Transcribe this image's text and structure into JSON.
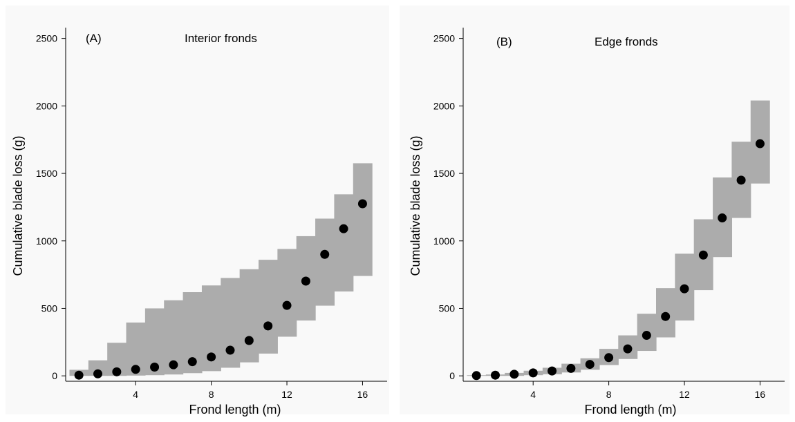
{
  "chart_data": [
    {
      "type": "scatter",
      "panel_label": "(A)",
      "title": "Interior fronds",
      "xlabel": "Frond length (m)",
      "ylabel": "Cumulative blade loss (g)",
      "xlim": [
        0.3,
        17.3
      ],
      "ylim": [
        -40,
        2580
      ],
      "xticks": [
        4,
        8,
        12,
        16
      ],
      "yticks": [
        0,
        500,
        1000,
        1500,
        2000,
        2500
      ],
      "grid": false,
      "x": [
        1,
        2,
        3,
        4,
        5,
        6,
        7,
        8,
        9,
        10,
        11,
        12,
        13,
        14,
        15,
        16
      ],
      "y": [
        5,
        15,
        30,
        48,
        65,
        82,
        105,
        140,
        190,
        262,
        370,
        522,
        702,
        900,
        1090,
        1275
      ],
      "band_lower": [
        0,
        0,
        0,
        2,
        5,
        10,
        20,
        35,
        60,
        100,
        165,
        290,
        410,
        520,
        625,
        740
      ],
      "band_upper": [
        45,
        115,
        245,
        395,
        500,
        560,
        620,
        670,
        725,
        790,
        860,
        940,
        1035,
        1165,
        1345,
        1575
      ]
    },
    {
      "type": "scatter",
      "panel_label": "(B)",
      "title": "Edge fronds",
      "xlabel": "Frond length (m)",
      "ylabel": "Cumulative blade loss (g)",
      "xlim": [
        0.3,
        17.3
      ],
      "ylim": [
        -40,
        2580
      ],
      "xticks": [
        4,
        8,
        12,
        16
      ],
      "yticks": [
        0,
        500,
        1000,
        1500,
        2000,
        2500
      ],
      "grid": false,
      "x": [
        1,
        2,
        3,
        4,
        5,
        6,
        7,
        8,
        9,
        10,
        11,
        12,
        13,
        14,
        15,
        16
      ],
      "y": [
        2,
        5,
        12,
        22,
        36,
        55,
        85,
        135,
        200,
        300,
        440,
        645,
        895,
        1170,
        1450,
        1720
      ],
      "band_lower": [
        0,
        0,
        0,
        5,
        12,
        25,
        45,
        80,
        125,
        185,
        285,
        410,
        635,
        880,
        1170,
        1425
      ],
      "band_upper": [
        5,
        10,
        22,
        38,
        60,
        90,
        130,
        200,
        300,
        460,
        650,
        905,
        1160,
        1470,
        1735,
        2040
      ]
    }
  ]
}
